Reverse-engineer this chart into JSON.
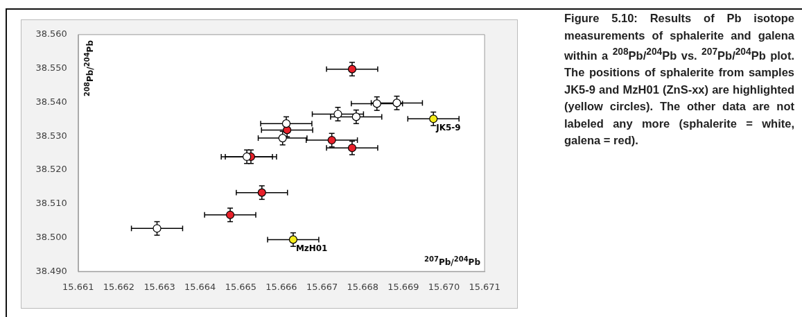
{
  "chart_data": {
    "type": "scatter",
    "xlabel": "$^{207}$Pb/$^{204}$Pb",
    "ylabel": "$^{208}$Pb/$^{204}$Pb",
    "xlim": [
      15.661,
      15.671
    ],
    "xticks": [
      {
        "value": 15.661,
        "label": "15.661"
      },
      {
        "value": 15.662,
        "label": "15.662"
      },
      {
        "value": 15.663,
        "label": "15.663"
      },
      {
        "value": 15.664,
        "label": "15.664"
      },
      {
        "value": 15.665,
        "label": "15.665"
      },
      {
        "value": 15.666,
        "label": "15.666"
      },
      {
        "value": 15.667,
        "label": "15.667"
      },
      {
        "value": 15.668,
        "label": "15.668"
      },
      {
        "value": 15.669,
        "label": "15.669"
      },
      {
        "value": 15.67,
        "label": "15.670"
      },
      {
        "value": 15.671,
        "label": "15.671"
      }
    ],
    "ylim": [
      38.49,
      38.56
    ],
    "yticks": [
      {
        "value": 38.49,
        "label": "38.490"
      },
      {
        "value": 38.5,
        "label": "38.500"
      },
      {
        "value": 38.51,
        "label": "38.510"
      },
      {
        "value": 38.52,
        "label": "38.520"
      },
      {
        "value": 38.53,
        "label": "38.530"
      },
      {
        "value": 38.54,
        "label": "38.540"
      },
      {
        "value": 38.55,
        "label": "38.550"
      },
      {
        "value": 38.56,
        "label": "38.560"
      }
    ],
    "grid": false,
    "legend": false,
    "marker": "circle",
    "series": [
      {
        "color": "#ffffff",
        "x": [
          15.66294,
          15.66515,
          15.66612,
          15.66603,
          15.66739,
          15.66784,
          15.66835,
          15.66884
        ],
        "values": [
          38.5027,
          38.5239,
          38.5337,
          38.5294,
          38.5365,
          38.5357,
          38.5396,
          38.5398
        ],
        "xerrors": [
          0.00063,
          0.00063,
          0.00063,
          0.0006,
          0.00063,
          0.00063,
          0.00063,
          0.00063
        ],
        "errors": [
          0.002,
          0.002,
          0.002,
          0.002,
          0.002,
          0.002,
          0.002,
          0.002
        ]
      },
      {
        "color": "#e8202a",
        "x": [
          15.66474,
          15.66552,
          15.66525,
          15.66614,
          15.66724,
          15.66774,
          15.66774
        ],
        "values": [
          38.5067,
          38.5133,
          38.5239,
          38.5318,
          38.5288,
          38.5265,
          38.5498
        ],
        "xerrors": [
          0.00063,
          0.00063,
          0.00063,
          0.00063,
          0.00063,
          0.00063,
          0.00063
        ],
        "errors": [
          0.002,
          0.002,
          0.002,
          0.002,
          0.002,
          0.002,
          0.002
        ]
      },
      {
        "color": "#f5ec1c",
        "x": [
          15.66629,
          15.66974
        ],
        "values": [
          38.4994,
          38.5351
        ],
        "xerrors": [
          0.00063,
          0.00063
        ],
        "errors": [
          0.002,
          0.002
        ]
      }
    ],
    "annotations": [
      {
        "text": "JK5-9",
        "x": 15.66974,
        "y": 38.5351
      },
      {
        "text": "MzH01",
        "x": 15.66629,
        "y": 38.4994
      },
      "Figure 5.10: Results of Pb isotope measurements of sphalerite and galena within a $^{208}$Pb/$^{204}$Pb vs. $^{207}$Pb/$^{204}$Pb plot. The positions of sphalerite from samples JK5-9 and MzH01 (ZnS-xx) are highlighted (yellow circles). The other data are not labeled any more (sphalerite = white, galena = red)."
    ]
  }
}
